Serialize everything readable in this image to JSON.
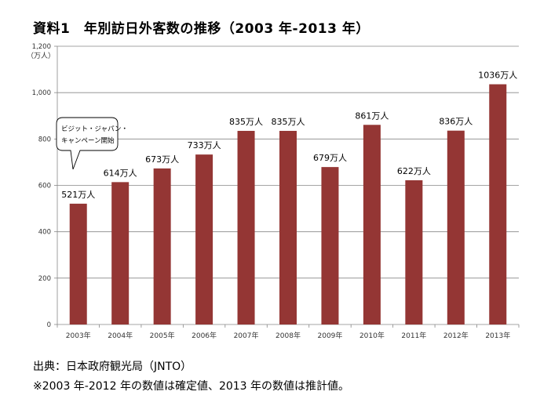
{
  "title": "資料1　年別訪日外客数の推移（2003 年-2013 年）",
  "footer": {
    "source": "出典：日本政府観光局（JNTO）",
    "note": "※2003 年-2012 年の数値は確定値、2013 年の数値は推計値。"
  },
  "chart_data": {
    "type": "bar",
    "title": "",
    "xlabel": "",
    "ylabel": "（万人）",
    "ylim": [
      0,
      1200
    ],
    "yticks": [
      "0",
      "200",
      "400",
      "600",
      "800",
      "1,000",
      "1,200"
    ],
    "ytick_values": [
      0,
      200,
      400,
      600,
      800,
      1000,
      1200
    ],
    "categories": [
      "2003年",
      "2004年",
      "2005年",
      "2006年",
      "2007年",
      "2008年",
      "2009年",
      "2010年",
      "2011年",
      "2012年",
      "2013年"
    ],
    "values": [
      521,
      614,
      673,
      733,
      835,
      835,
      679,
      861,
      622,
      836,
      1036
    ],
    "data_labels": [
      "521万人",
      "614万人",
      "673万人",
      "733万人",
      "835万人",
      "835万人",
      "679万人",
      "861万人",
      "622万人",
      "836万人",
      "1036万人"
    ],
    "bar_color": "#943634",
    "grid": true,
    "annotation": {
      "lines": [
        "ビジット・ジャパン・",
        "キャンペーン開始"
      ],
      "category_index": 0
    }
  }
}
